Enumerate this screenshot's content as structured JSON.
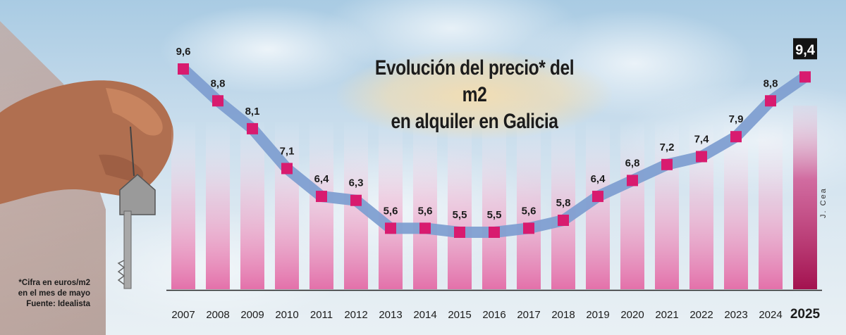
{
  "title": {
    "line1": "Evolución del precio* del m2",
    "line2": "en alquiler en Galicia"
  },
  "footnote": {
    "line1": "*Cifra en euros/m2",
    "line2": "en el mes de mayo",
    "line3": "Fuente: Idealista"
  },
  "credit": "J. Cea",
  "colors": {
    "marker": "#d81b6f",
    "line": "#7f9fd1",
    "bar": "#e885b5",
    "highlight_bar": "#b0185e",
    "highlight_label_bg": "#141414"
  },
  "chart_data": {
    "type": "line",
    "title": "Evolución del precio* del m2 en alquiler en Galicia",
    "xlabel": "",
    "ylabel": "",
    "unit": "euros/m2",
    "categories": [
      "2007",
      "2008",
      "2009",
      "2010",
      "2011",
      "2012",
      "2013",
      "2014",
      "2015",
      "2016",
      "2017",
      "2018",
      "2019",
      "2020",
      "2021",
      "2022",
      "2023",
      "2024",
      "2025"
    ],
    "values": [
      9.6,
      8.8,
      8.1,
      7.1,
      6.4,
      6.3,
      5.6,
      5.6,
      5.5,
      5.5,
      5.6,
      5.8,
      6.4,
      6.8,
      7.2,
      7.4,
      7.9,
      8.8,
      9.4
    ],
    "value_labels": [
      "9,6",
      "8,8",
      "8,1",
      "7,1",
      "6,4",
      "6,3",
      "5,6",
      "5,6",
      "5,5",
      "5,5",
      "5,6",
      "5,8",
      "6,4",
      "6,8",
      "7,2",
      "7,4",
      "7,9",
      "8,8",
      "9,4"
    ],
    "highlight": "2025",
    "grid": false,
    "legend": "none"
  }
}
